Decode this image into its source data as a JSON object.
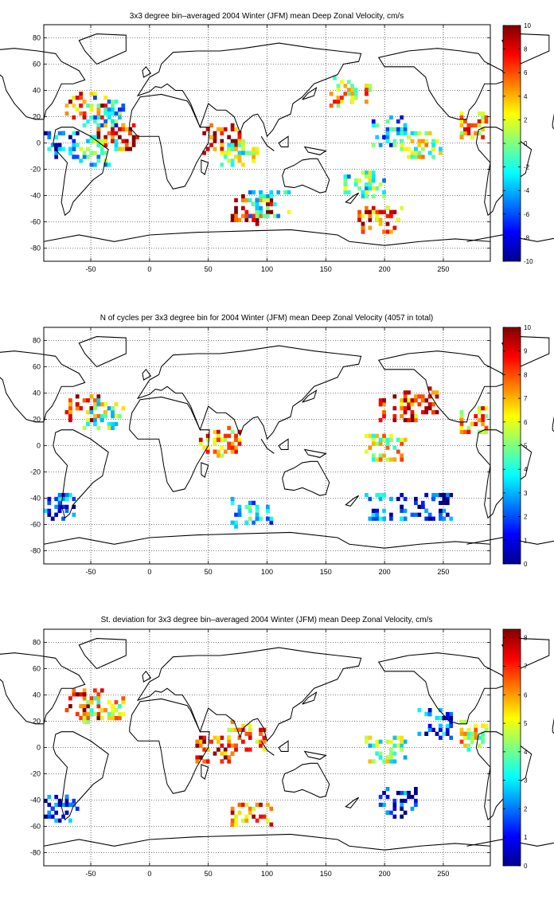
{
  "chart_data": [
    {
      "type": "heatmap",
      "title": "3x3 degree bin–averaged 2004 Winter (JFM) mean Deep Zonal Velocity, cm/s",
      "xlim": [
        -90,
        290
      ],
      "ylim": [
        -90,
        90
      ],
      "x_ticks": [
        -50,
        0,
        50,
        100,
        150,
        200,
        250
      ],
      "y_ticks": [
        80,
        60,
        40,
        20,
        0,
        -20,
        -40,
        -60,
        -80
      ],
      "grid": true,
      "colorbar": {
        "min": -10,
        "max": 10,
        "ticks": [
          10,
          8,
          6,
          4,
          2,
          0,
          -2,
          -4,
          -6,
          -8,
          -10
        ]
      },
      "seed": 11,
      "points": [
        {
          "lon": -55,
          "lat": 30,
          "v": 6
        },
        {
          "lon": -40,
          "lat": 25,
          "v": -3
        },
        {
          "lon": -30,
          "lat": 5,
          "v": 8
        },
        {
          "lon": -45,
          "lat": -5,
          "v": -1
        },
        {
          "lon": -80,
          "lat": 0,
          "v": -6
        },
        {
          "lon": 60,
          "lat": 5,
          "v": 7
        },
        {
          "lon": 75,
          "lat": -5,
          "v": 0
        },
        {
          "lon": 85,
          "lat": -50,
          "v": 9
        },
        {
          "lon": 100,
          "lat": -45,
          "v": -2
        },
        {
          "lon": 170,
          "lat": 40,
          "v": 3
        },
        {
          "lon": 205,
          "lat": 10,
          "v": -4
        },
        {
          "lon": 230,
          "lat": 0,
          "v": 1
        },
        {
          "lon": 195,
          "lat": -58,
          "v": 6
        },
        {
          "lon": 180,
          "lat": -30,
          "v": -1
        },
        {
          "lon": 280,
          "lat": 15,
          "v": 4
        }
      ]
    },
    {
      "type": "heatmap",
      "title": "N of cycles per 3x3 degree bin for 2004 Winter (JFM) mean Deep Zonal Velocity (4057 in total)",
      "xlim": [
        -90,
        290
      ],
      "ylim": [
        -90,
        90
      ],
      "x_ticks": [
        -50,
        0,
        50,
        100,
        150,
        200,
        250
      ],
      "y_ticks": [
        80,
        60,
        40,
        20,
        0,
        -20,
        -40,
        -60,
        -80
      ],
      "grid": true,
      "colorbar": {
        "min": 0,
        "max": 10,
        "ticks": [
          10,
          9,
          8,
          7,
          6,
          5,
          4,
          3,
          2,
          1,
          0
        ]
      },
      "seed": 23,
      "points": [
        {
          "lon": -55,
          "lat": 30,
          "v": 9
        },
        {
          "lon": -40,
          "lat": 25,
          "v": 5
        },
        {
          "lon": 210,
          "lat": 30,
          "v": 8
        },
        {
          "lon": 230,
          "lat": 35,
          "v": 9
        },
        {
          "lon": 200,
          "lat": 0,
          "v": 6
        },
        {
          "lon": 60,
          "lat": 5,
          "v": 7
        },
        {
          "lon": 200,
          "lat": -45,
          "v": 2
        },
        {
          "lon": 240,
          "lat": -45,
          "v": 1
        },
        {
          "lon": 85,
          "lat": -50,
          "v": 3
        },
        {
          "lon": -80,
          "lat": -45,
          "v": 2
        },
        {
          "lon": 280,
          "lat": 20,
          "v": 7
        }
      ]
    },
    {
      "type": "heatmap",
      "title": "St. deviation for 3x3 degree bin–averaged 2004 Winter (JFM) mean Deep Zonal Velocity, cm/s",
      "xlim": [
        -90,
        290
      ],
      "ylim": [
        -90,
        90
      ],
      "x_ticks": [
        -50,
        0,
        50,
        100,
        150,
        200,
        250
      ],
      "y_ticks": [
        80,
        60,
        40,
        20,
        0,
        -20,
        -40,
        -60,
        -80
      ],
      "grid": true,
      "colorbar": {
        "min": 0,
        "max": 8.3,
        "ticks": [
          8,
          7,
          6,
          5,
          4,
          3,
          2,
          1,
          0
        ]
      },
      "seed": 37,
      "points": [
        {
          "lon": -55,
          "lat": 35,
          "v": 7.5
        },
        {
          "lon": -40,
          "lat": 30,
          "v": 5
        },
        {
          "lon": 55,
          "lat": 0,
          "v": 7
        },
        {
          "lon": 80,
          "lat": 10,
          "v": 6
        },
        {
          "lon": 85,
          "lat": -50,
          "v": 6.5
        },
        {
          "lon": 200,
          "lat": 0,
          "v": 4
        },
        {
          "lon": 210,
          "lat": -40,
          "v": 1
        },
        {
          "lon": 240,
          "lat": 20,
          "v": 1.5
        },
        {
          "lon": -80,
          "lat": -45,
          "v": 1
        },
        {
          "lon": 280,
          "lat": 10,
          "v": 5
        }
      ]
    }
  ]
}
